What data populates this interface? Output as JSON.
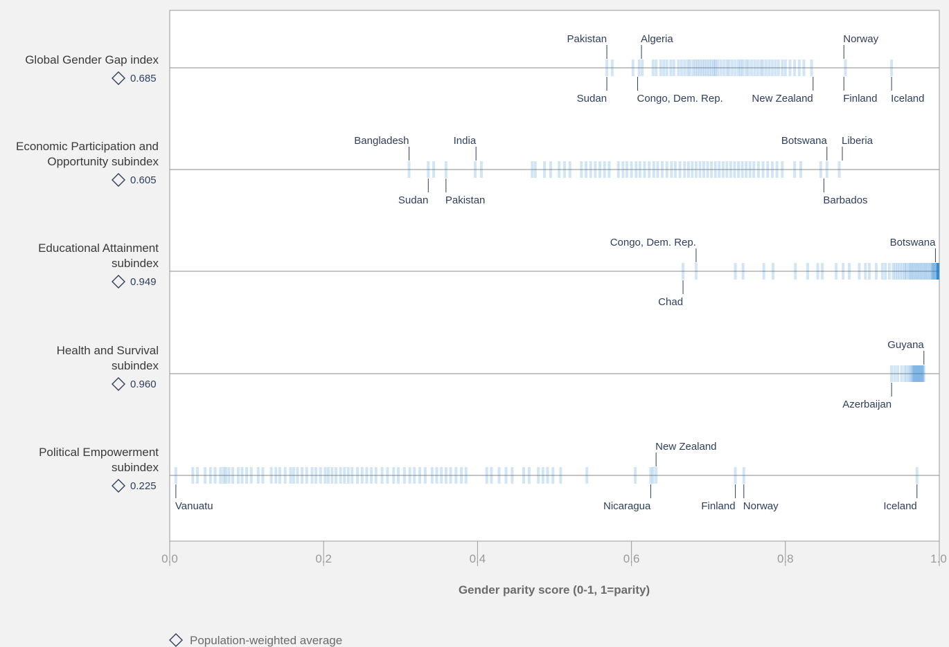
{
  "chart_data": {
    "type": "strip",
    "xlabel": "Gender parity score (0-1, 1=parity)",
    "xlim": [
      0,
      1
    ],
    "xticks": [
      {
        "value": 0,
        "label": "0.0"
      },
      {
        "value": 0.2,
        "label": "0.2"
      },
      {
        "value": 0.4,
        "label": "0.4"
      },
      {
        "value": 0.6,
        "label": "0.6"
      },
      {
        "value": 0.8,
        "label": "0.8"
      },
      {
        "value": 1,
        "label": "1.0"
      }
    ],
    "bar_color": "#1c7fcc",
    "label_color": "#2e3e5c",
    "legend": {
      "label": "Population-weighted average",
      "marker": "diamond-icon",
      "placement": "bottom-left"
    },
    "rows": [
      {
        "name": [
          "Global Gender Gap index"
        ],
        "average": 0.685,
        "average_label": "0.685",
        "values": [
          0.568,
          0.575,
          0.602,
          0.61,
          0.614,
          0.628,
          0.632,
          0.638,
          0.642,
          0.646,
          0.651,
          0.655,
          0.661,
          0.665,
          0.669,
          0.673,
          0.676,
          0.68,
          0.683,
          0.686,
          0.689,
          0.692,
          0.695,
          0.698,
          0.701,
          0.704,
          0.707,
          0.709,
          0.712,
          0.716,
          0.72,
          0.724,
          0.727,
          0.731,
          0.735,
          0.739,
          0.742,
          0.745,
          0.749,
          0.752,
          0.756,
          0.76,
          0.764,
          0.768,
          0.771,
          0.775,
          0.779,
          0.783,
          0.787,
          0.791,
          0.796,
          0.8,
          0.806,
          0.812,
          0.818,
          0.824,
          0.834,
          0.878,
          0.938
        ],
        "labels_above": [
          {
            "text": "Pakistan",
            "value": 0.568,
            "anchor": "end"
          },
          {
            "text": "Algeria",
            "value": 0.613,
            "anchor": "start"
          },
          {
            "text": "Norway",
            "value": 0.876,
            "anchor": "start"
          }
        ],
        "labels_below": [
          {
            "text": "Sudan",
            "value": 0.568,
            "anchor": "end"
          },
          {
            "text": "Congo, Dem. Rep.",
            "value": 0.608,
            "anchor": "start"
          },
          {
            "text": "New Zealand",
            "value": 0.836,
            "anchor": "end"
          },
          {
            "text": "Finland",
            "value": 0.876,
            "anchor": "start"
          },
          {
            "text": "Iceland",
            "value": 0.938,
            "anchor": "start"
          }
        ]
      },
      {
        "name": [
          "Economic Participation and",
          "Opportunity subindex"
        ],
        "average": 0.605,
        "average_label": "0.605",
        "values": [
          0.311,
          0.336,
          0.343,
          0.359,
          0.397,
          0.405,
          0.471,
          0.475,
          0.487,
          0.495,
          0.506,
          0.513,
          0.52,
          0.535,
          0.541,
          0.547,
          0.553,
          0.559,
          0.565,
          0.571,
          0.583,
          0.589,
          0.594,
          0.6,
          0.606,
          0.611,
          0.617,
          0.623,
          0.629,
          0.634,
          0.64,
          0.646,
          0.652,
          0.657,
          0.663,
          0.669,
          0.674,
          0.679,
          0.684,
          0.689,
          0.694,
          0.699,
          0.704,
          0.709,
          0.714,
          0.719,
          0.724,
          0.729,
          0.734,
          0.739,
          0.744,
          0.749,
          0.754,
          0.759,
          0.765,
          0.771,
          0.777,
          0.783,
          0.789,
          0.796,
          0.812,
          0.82,
          0.846,
          0.854,
          0.87
        ],
        "labels_above": [
          {
            "text": "Bangladesh",
            "value": 0.311,
            "anchor": "end"
          },
          {
            "text": "India",
            "value": 0.398,
            "anchor": "end"
          },
          {
            "text": "Botswana",
            "value": 0.854,
            "anchor": "end"
          },
          {
            "text": "Liberia",
            "value": 0.874,
            "anchor": "start"
          }
        ],
        "labels_below": [
          {
            "text": "Sudan",
            "value": 0.336,
            "anchor": "end"
          },
          {
            "text": "Pakistan",
            "value": 0.359,
            "anchor": "start"
          },
          {
            "text": "Barbados",
            "value": 0.85,
            "anchor": "start"
          }
        ]
      },
      {
        "name": [
          "Educational Attainment",
          "subindex"
        ],
        "average": 0.949,
        "average_label": "0.949",
        "values": [
          0.667,
          0.684,
          0.735,
          0.745,
          0.772,
          0.784,
          0.813,
          0.829,
          0.842,
          0.848,
          0.866,
          0.875,
          0.883,
          0.896,
          0.904,
          0.909,
          0.918,
          0.926,
          0.93,
          0.935,
          0.94,
          0.943,
          0.946,
          0.949,
          0.952,
          0.955,
          0.957,
          0.96,
          0.962,
          0.964,
          0.966,
          0.968,
          0.97,
          0.972,
          0.974,
          0.976,
          0.978,
          0.98,
          0.982,
          0.984,
          0.986,
          0.988,
          0.99,
          0.991,
          0.992,
          0.993,
          0.994,
          0.995,
          0.996,
          0.997,
          0.998,
          0.999,
          1,
          1,
          1,
          1,
          1,
          1
        ],
        "labels_above": [
          {
            "text": "Congo, Dem. Rep.",
            "value": 0.684,
            "anchor": "end"
          },
          {
            "text": "Botswana",
            "value": 0.995,
            "anchor": "end"
          }
        ],
        "labels_below": [
          {
            "text": "Chad",
            "value": 0.667,
            "anchor": "end"
          }
        ]
      },
      {
        "name": [
          "Health and Survival",
          "subindex"
        ],
        "average": 0.96,
        "average_label": "0.960",
        "values": [
          0.938,
          0.942,
          0.946,
          0.951,
          0.955,
          0.958,
          0.961,
          0.963,
          0.965,
          0.966,
          0.967,
          0.968,
          0.969,
          0.97,
          0.971,
          0.972,
          0.973,
          0.974,
          0.975,
          0.976,
          0.977,
          0.978,
          0.979,
          0.98
        ],
        "labels_above": [
          {
            "text": "Guyana",
            "value": 0.98,
            "anchor": "end"
          }
        ],
        "labels_below": [
          {
            "text": "Azerbaijan",
            "value": 0.938,
            "anchor": "end"
          }
        ]
      },
      {
        "name": [
          "Political Empowerment",
          "subindex"
        ],
        "average": 0.225,
        "average_label": "0.225",
        "values": [
          0.008,
          0.03,
          0.036,
          0.046,
          0.053,
          0.059,
          0.066,
          0.07,
          0.073,
          0.077,
          0.082,
          0.089,
          0.094,
          0.1,
          0.106,
          0.115,
          0.121,
          0.132,
          0.138,
          0.143,
          0.15,
          0.157,
          0.161,
          0.166,
          0.172,
          0.178,
          0.185,
          0.19,
          0.196,
          0.202,
          0.206,
          0.211,
          0.216,
          0.222,
          0.227,
          0.232,
          0.237,
          0.244,
          0.25,
          0.256,
          0.262,
          0.268,
          0.276,
          0.283,
          0.291,
          0.297,
          0.305,
          0.312,
          0.318,
          0.325,
          0.332,
          0.341,
          0.347,
          0.353,
          0.359,
          0.365,
          0.372,
          0.379,
          0.385,
          0.412,
          0.418,
          0.428,
          0.437,
          0.445,
          0.46,
          0.467,
          0.479,
          0.485,
          0.491,
          0.498,
          0.508,
          0.542,
          0.605,
          0.625,
          0.628,
          0.632,
          0.735,
          0.746,
          0.971
        ],
        "labels_above": [
          {
            "text": "New Zealand",
            "value": 0.632,
            "anchor": "start"
          }
        ],
        "labels_below": [
          {
            "text": "Vanuatu",
            "value": 0.008,
            "anchor": "start"
          },
          {
            "text": "Nicaragua",
            "value": 0.625,
            "anchor": "end"
          },
          {
            "text": "Finland",
            "value": 0.735,
            "anchor": "end"
          },
          {
            "text": "Norway",
            "value": 0.746,
            "anchor": "start"
          },
          {
            "text": "Iceland",
            "value": 0.971,
            "anchor": "end"
          }
        ]
      }
    ]
  }
}
